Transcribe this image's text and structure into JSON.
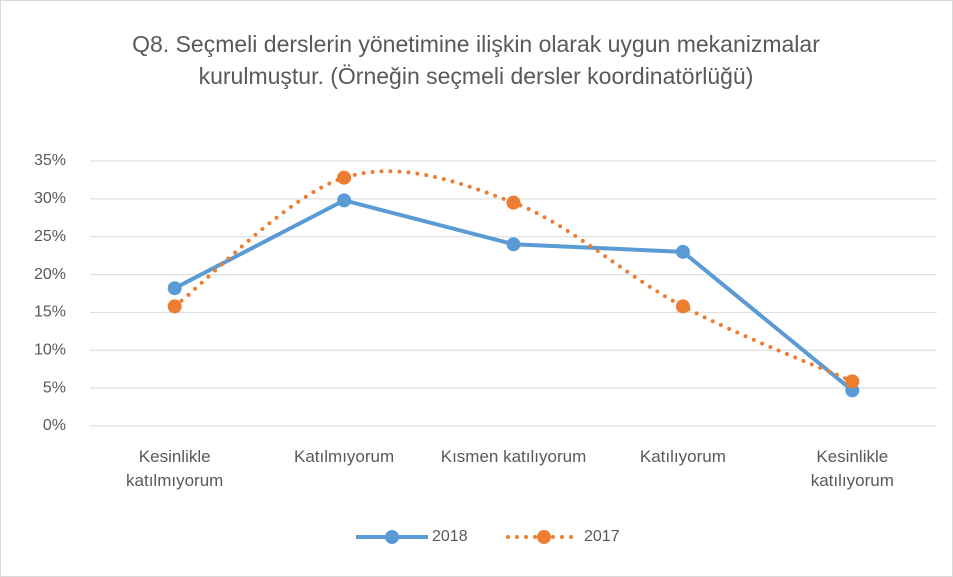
{
  "chart_data": {
    "type": "line",
    "title": "Q8. Seçmeli derslerin yönetimine ilişkin olarak uygun mekanizmalar kurulmuştur. (Örneğin seçmeli dersler koordinatörlüğü)",
    "categories": [
      "Kesinlikle katılmıyorum",
      "Katılmıyorum",
      "Kısmen katılıyorum",
      "Katılıyorum",
      "Kesinlikle katılıyorum"
    ],
    "series": [
      {
        "name": "2018",
        "color": "#5b9bd5",
        "style": "solid",
        "values": [
          18.2,
          29.8,
          24.0,
          23.0,
          4.7
        ]
      },
      {
        "name": "2017",
        "color": "#ed7d31",
        "style": "dotted",
        "smooth": true,
        "values": [
          15.8,
          32.8,
          29.5,
          15.8,
          5.9
        ]
      }
    ],
    "ylim": [
      0,
      35
    ],
    "yticks": [
      {
        "value": 0,
        "label": "0%"
      },
      {
        "value": 5,
        "label": "5%"
      },
      {
        "value": 10,
        "label": "10%"
      },
      {
        "value": 15,
        "label": "15%"
      },
      {
        "value": 20,
        "label": "20%"
      },
      {
        "value": 25,
        "label": "25%"
      },
      {
        "value": 30,
        "label": "30%"
      },
      {
        "value": 35,
        "label": "35%"
      }
    ],
    "grid": true,
    "legend": "bottom"
  }
}
